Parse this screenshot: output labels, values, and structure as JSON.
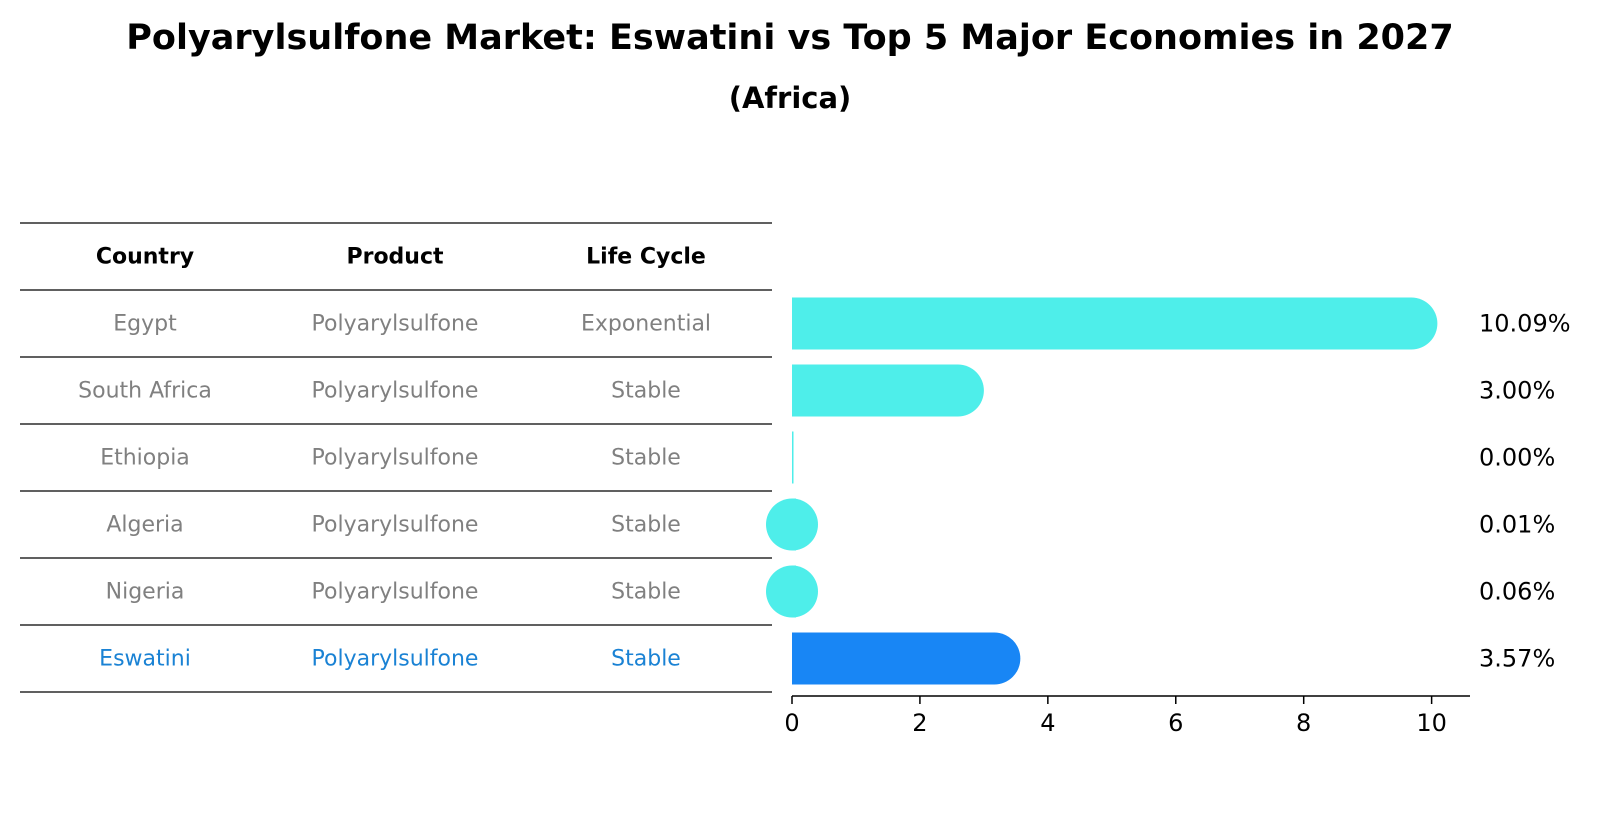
{
  "title": "Polyarylsulfone Market: Eswatini vs Top 5 Major Economies in 2027",
  "subtitle": "(Africa)",
  "colors": {
    "bar": "#4EEEEA",
    "highlight_bar": "#1886F5",
    "table_text": "#808080",
    "highlight_text": "#1A82D4",
    "header_text": "#000000",
    "rule": "#000000"
  },
  "table": {
    "headers": [
      "Country",
      "Product",
      "Life Cycle"
    ],
    "rows": [
      {
        "country": "Egypt",
        "product": "Polyarylsulfone",
        "life_cycle": "Exponential",
        "highlight": false
      },
      {
        "country": "South Africa",
        "product": "Polyarylsulfone",
        "life_cycle": "Stable",
        "highlight": false
      },
      {
        "country": "Ethiopia",
        "product": "Polyarylsulfone",
        "life_cycle": "Stable",
        "highlight": false
      },
      {
        "country": "Algeria",
        "product": "Polyarylsulfone",
        "life_cycle": "Stable",
        "highlight": false
      },
      {
        "country": "Nigeria",
        "product": "Polyarylsulfone",
        "life_cycle": "Stable",
        "highlight": false
      },
      {
        "country": "Eswatini",
        "product": "Polyarylsulfone",
        "life_cycle": "Stable",
        "highlight": true
      }
    ]
  },
  "chart_data": {
    "type": "bar",
    "orientation": "horizontal",
    "categories": [
      "Egypt",
      "South Africa",
      "Ethiopia",
      "Algeria",
      "Nigeria",
      "Eswatini"
    ],
    "values": [
      10.09,
      3.0,
      0.0,
      0.01,
      0.06,
      3.57
    ],
    "value_labels": [
      "10.09%",
      "3.00%",
      "0.00%",
      "0.01%",
      "0.06%",
      "3.57%"
    ],
    "highlight_category": "Eswatini",
    "xlim": [
      0,
      10.6
    ],
    "xticks": [
      0,
      2,
      4,
      6,
      8,
      10
    ],
    "xtick_labels": [
      "0",
      "2",
      "4",
      "6",
      "8",
      "10"
    ],
    "grid": false,
    "legend": "none"
  }
}
